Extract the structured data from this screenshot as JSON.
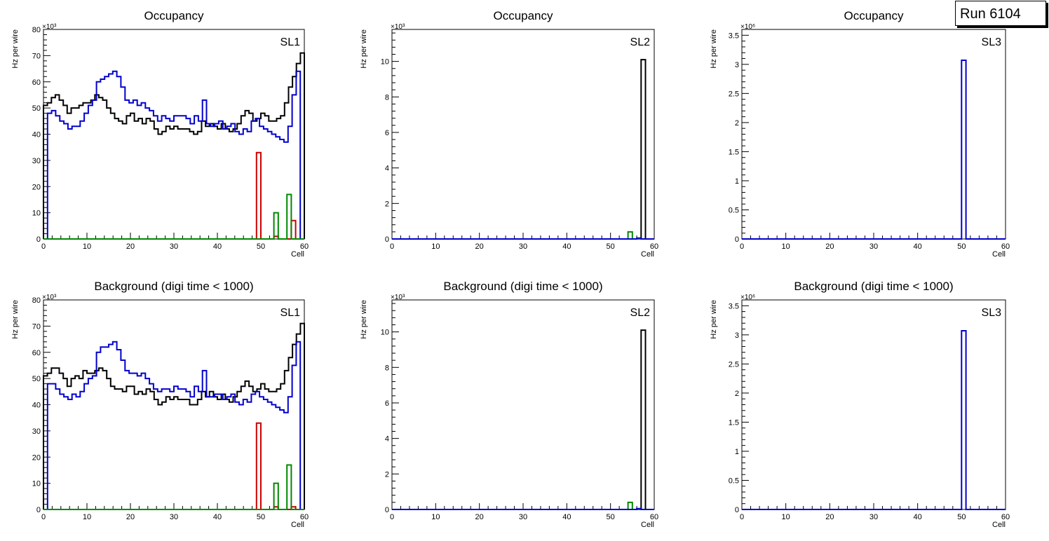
{
  "run_label": "Run 6104",
  "colors": {
    "black": "#000000",
    "blue": "#0000cc",
    "red": "#cc0000",
    "green": "#008800"
  },
  "chart_data": [
    {
      "type": "histogram",
      "title": "Occupancy",
      "panel_label": "SL1",
      "xlabel": "Cell",
      "ylabel": "Hz per wire",
      "xlim": [
        0,
        60
      ],
      "ylim": [
        0,
        80
      ],
      "y_exponent": "×10³",
      "xticks": [
        0,
        10,
        20,
        30,
        40,
        50,
        60
      ],
      "yticks": [
        0,
        10,
        20,
        30,
        40,
        50,
        60,
        70,
        80
      ],
      "series": [
        {
          "name": "black",
          "color": "#000000",
          "values": [
            51,
            52,
            54,
            55,
            53,
            51,
            48,
            50,
            50,
            51,
            52,
            52,
            53,
            55,
            54,
            53,
            50,
            48,
            46,
            45,
            44,
            47,
            48,
            45,
            46,
            44,
            46,
            45,
            42,
            40,
            41,
            43,
            42,
            43,
            42,
            42,
            42,
            41,
            40,
            41,
            45,
            43,
            44,
            43,
            42,
            44,
            42,
            41,
            42,
            44,
            47,
            49,
            48,
            45,
            46,
            48,
            47,
            45,
            45,
            46,
            47,
            52,
            58,
            62,
            67,
            71
          ]
        },
        {
          "name": "blue",
          "color": "#0000cc",
          "values": [
            0,
            48,
            49,
            47,
            45,
            44,
            42,
            43,
            43,
            45,
            48,
            51,
            53,
            60,
            61,
            62,
            63,
            64,
            62,
            58,
            53,
            52,
            53,
            51,
            52,
            50,
            49,
            47,
            45,
            47,
            46,
            45,
            47,
            47,
            47,
            46,
            44,
            47,
            45,
            53,
            44,
            43,
            44,
            45,
            42,
            43,
            44,
            41,
            40,
            42,
            41,
            45,
            46,
            43,
            42,
            41,
            40,
            39,
            38,
            37,
            43,
            55,
            64,
            0
          ]
        },
        {
          "name": "red",
          "color": "#cc0000",
          "values": [
            {
              "cell": 49,
              "value": 33
            },
            {
              "cell": 53,
              "value": 1
            },
            {
              "cell": 57,
              "value": 7
            }
          ]
        },
        {
          "name": "green",
          "color": "#008800",
          "values": [
            {
              "cell": 53,
              "value": 10
            },
            {
              "cell": 56,
              "value": 17
            }
          ]
        }
      ]
    },
    {
      "type": "histogram",
      "title": "Occupancy",
      "panel_label": "SL2",
      "xlabel": "Cell",
      "ylabel": "Hz per wire",
      "xlim": [
        0,
        60
      ],
      "ylim": [
        0,
        11.8
      ],
      "y_exponent": "×10³",
      "xticks": [
        0,
        10,
        20,
        30,
        40,
        50,
        60
      ],
      "yticks": [
        0,
        2,
        4,
        6,
        8,
        10
      ],
      "series": [
        {
          "name": "black",
          "color": "#000000",
          "values": [
            {
              "cell": 57,
              "value": 10.1
            }
          ]
        },
        {
          "name": "green",
          "color": "#008800",
          "values": [
            {
              "cell": 54,
              "value": 0.4
            }
          ]
        },
        {
          "name": "blue",
          "color": "#0000cc",
          "values": [
            {
              "cell": 56,
              "value": 0.05
            }
          ]
        }
      ]
    },
    {
      "type": "histogram",
      "title": "Occupancy",
      "panel_label": "SL3",
      "xlabel": "Cell",
      "ylabel": "Hz per wire",
      "xlim": [
        0,
        60
      ],
      "ylim": [
        0,
        3.6
      ],
      "y_exponent": "×10⁶",
      "xticks": [
        0,
        10,
        20,
        30,
        40,
        50,
        60
      ],
      "yticks": [
        0,
        0.5,
        1,
        1.5,
        2,
        2.5,
        3,
        3.5
      ],
      "series": [
        {
          "name": "blue",
          "color": "#0000cc",
          "values": [
            {
              "cell": 50,
              "value": 3.07
            }
          ]
        }
      ]
    },
    {
      "type": "histogram",
      "title": "Background (digi time < 1000)",
      "panel_label": "SL1",
      "xlabel": "Cell",
      "ylabel": "Hz per wire",
      "xlim": [
        0,
        60
      ],
      "ylim": [
        0,
        80
      ],
      "y_exponent": "×10³",
      "xticks": [
        0,
        10,
        20,
        30,
        40,
        50,
        60
      ],
      "yticks": [
        0,
        10,
        20,
        30,
        40,
        50,
        60,
        70,
        80
      ],
      "series": [
        {
          "name": "black",
          "color": "#000000",
          "values": [
            51,
            52,
            54,
            54,
            52,
            50,
            47,
            50,
            51,
            50,
            53,
            52,
            52,
            53,
            54,
            53,
            50,
            47,
            46,
            46,
            45,
            47,
            47,
            44,
            45,
            44,
            46,
            45,
            42,
            40,
            41,
            43,
            42,
            43,
            42,
            42,
            42,
            40,
            40,
            42,
            45,
            43,
            45,
            43,
            42,
            44,
            42,
            41,
            43,
            45,
            47,
            49,
            47,
            45,
            46,
            48,
            46,
            45,
            45,
            46,
            48,
            53,
            58,
            63,
            67,
            71
          ]
        },
        {
          "name": "blue",
          "color": "#0000cc",
          "values": [
            0,
            48,
            48,
            46,
            44,
            43,
            42,
            44,
            43,
            45,
            48,
            50,
            51,
            60,
            62,
            62,
            63,
            64,
            61,
            57,
            53,
            52,
            52,
            51,
            52,
            50,
            48,
            46,
            45,
            46,
            46,
            45,
            47,
            46,
            46,
            45,
            43,
            47,
            45,
            53,
            43,
            43,
            44,
            44,
            42,
            43,
            44,
            41,
            40,
            42,
            41,
            44,
            45,
            43,
            42,
            41,
            40,
            39,
            38,
            37,
            43,
            55,
            64,
            0
          ]
        },
        {
          "name": "red",
          "color": "#cc0000",
          "values": [
            {
              "cell": 49,
              "value": 33
            },
            {
              "cell": 53,
              "value": 1
            },
            {
              "cell": 57,
              "value": 1
            }
          ]
        },
        {
          "name": "green",
          "color": "#008800",
          "values": [
            {
              "cell": 53,
              "value": 10
            },
            {
              "cell": 56,
              "value": 17
            }
          ]
        }
      ]
    },
    {
      "type": "histogram",
      "title": "Background (digi time < 1000)",
      "panel_label": "SL2",
      "xlabel": "Cell",
      "ylabel": "Hz per wire",
      "xlim": [
        0,
        60
      ],
      "ylim": [
        0,
        11.8
      ],
      "y_exponent": "×10³",
      "xticks": [
        0,
        10,
        20,
        30,
        40,
        50,
        60
      ],
      "yticks": [
        0,
        2,
        4,
        6,
        8,
        10
      ],
      "series": [
        {
          "name": "black",
          "color": "#000000",
          "values": [
            {
              "cell": 57,
              "value": 10.1
            }
          ]
        },
        {
          "name": "green",
          "color": "#008800",
          "values": [
            {
              "cell": 54,
              "value": 0.4
            }
          ]
        },
        {
          "name": "blue",
          "color": "#0000cc",
          "values": [
            {
              "cell": 56,
              "value": 0.05
            }
          ]
        }
      ]
    },
    {
      "type": "histogram",
      "title": "Background (digi time < 1000)",
      "panel_label": "SL3",
      "xlabel": "Cell",
      "ylabel": "Hz per wire",
      "xlim": [
        0,
        60
      ],
      "ylim": [
        0,
        3.6
      ],
      "y_exponent": "×10⁶",
      "xticks": [
        0,
        10,
        20,
        30,
        40,
        50,
        60
      ],
      "yticks": [
        0,
        0.5,
        1,
        1.5,
        2,
        2.5,
        3,
        3.5
      ],
      "series": [
        {
          "name": "blue",
          "color": "#0000cc",
          "values": [
            {
              "cell": 50,
              "value": 3.07
            }
          ]
        }
      ]
    }
  ]
}
